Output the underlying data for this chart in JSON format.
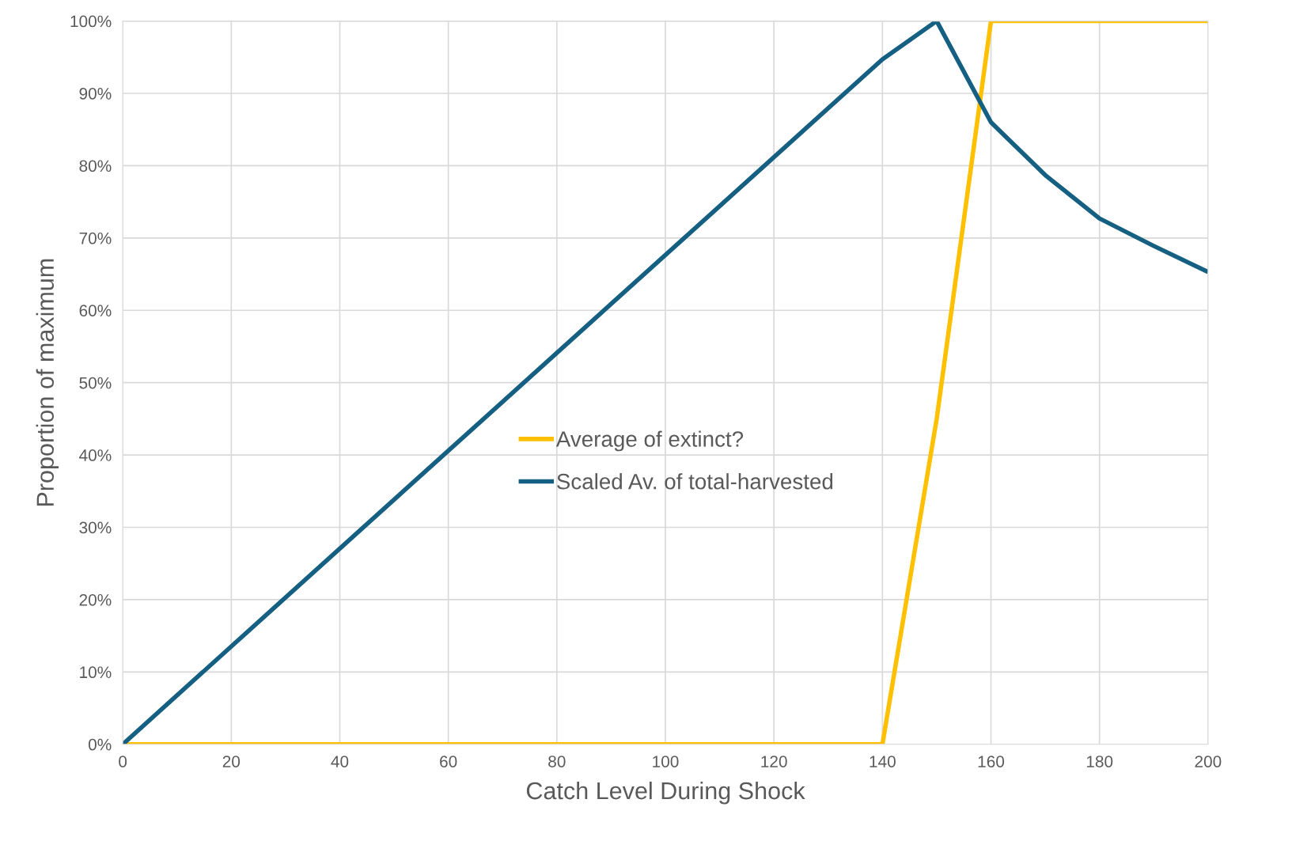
{
  "chart_data": {
    "type": "line",
    "xlabel": "Catch Level During Shock",
    "ylabel": "Proportion of maximum",
    "x": [
      0,
      140,
      150,
      160,
      170,
      180,
      190,
      200
    ],
    "series": [
      {
        "name": "Average of extinct?",
        "color": "#ffc000",
        "values": [
          0,
          0,
          45,
          100,
          100,
          100,
          100,
          100
        ]
      },
      {
        "name": "Scaled Av. of total-harvested",
        "color": "#156082",
        "values": [
          0,
          94.7,
          100,
          86,
          78.7,
          72.7,
          68.9,
          65.3
        ]
      }
    ],
    "xlim": [
      0,
      200
    ],
    "xticks": [
      0,
      20,
      40,
      60,
      80,
      100,
      120,
      140,
      160,
      180,
      200
    ],
    "ylim": [
      0,
      100
    ],
    "yticks": [
      {
        "value": 0,
        "label": "0%"
      },
      {
        "value": 10,
        "label": "10%"
      },
      {
        "value": 20,
        "label": "20%"
      },
      {
        "value": 30,
        "label": "30%"
      },
      {
        "value": 40,
        "label": "40%"
      },
      {
        "value": 50,
        "label": "50%"
      },
      {
        "value": 60,
        "label": "60%"
      },
      {
        "value": 70,
        "label": "70%"
      },
      {
        "value": 80,
        "label": "80%"
      },
      {
        "value": 90,
        "label": "90%"
      },
      {
        "value": 100,
        "label": "100%"
      }
    ],
    "grid": true,
    "legend": "center",
    "marker": "none",
    "line_style": "solid"
  }
}
